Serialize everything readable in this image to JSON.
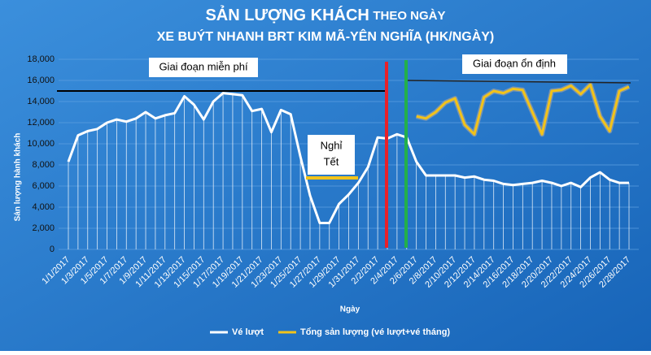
{
  "chart_data": {
    "type": "line",
    "title": "SẢN LƯỢNG KHÁCH",
    "title_suffix": "THEO NGÀY",
    "subtitle": "XE BUÝT NHANH BRT KIM MÃ-YÊN NGHĨA (HK/NGÀY)",
    "y_label": "Sản lượng hành khách",
    "x_label": "Ngày",
    "annotations": [
      "Giai đoạn miễn phí",
      "Nghỉ",
      "Tết",
      "Giai đoạn ổn định"
    ],
    "categories": [
      "1/1/2017",
      null,
      "1/3/2017",
      null,
      "1/5/2017",
      null,
      "1/7/2017",
      null,
      "1/9/2017",
      null,
      "1/11/2017",
      null,
      "1/13/2017",
      null,
      "1/15/2017",
      null,
      "1/17/2017",
      null,
      "1/19/2017",
      null,
      "1/21/2017",
      null,
      "1/23/2017",
      null,
      "1/25/2017",
      null,
      "1/27/2017",
      null,
      "1/29/2017",
      null,
      "1/31/2017",
      null,
      "2/2/2017",
      null,
      "2/4/2017",
      null,
      "2/6/2017",
      null,
      "2/8/2017",
      null,
      "2/10/2017",
      null,
      "2/12/2017",
      null,
      "2/14/2017",
      null,
      "2/16/2017",
      null,
      "2/18/2017",
      null,
      "2/20/2017",
      null,
      "2/22/2017",
      null,
      "2/24/2017",
      null,
      "2/26/2017",
      null,
      "2/28/2017"
    ],
    "series": [
      {
        "name": "Vé lượt",
        "color": "#ffffff",
        "values": [
          8300,
          10800,
          11200,
          11400,
          12000,
          12300,
          12100,
          12400,
          13000,
          12400,
          12700,
          12900,
          14500,
          13700,
          12300,
          14000,
          14800,
          14700,
          14600,
          13100,
          13300,
          11100,
          13200,
          12800,
          8800,
          5100,
          2500,
          2500,
          4300,
          5200,
          6300,
          7800,
          10600,
          10500,
          10900,
          10600,
          8300,
          7000,
          7000,
          7000,
          7000,
          6800,
          6900,
          6600,
          6500,
          6200,
          6100,
          6200,
          6300,
          6500,
          6300,
          6000,
          6300,
          5900,
          6800,
          7300,
          6600,
          6300,
          6300
        ]
      },
      {
        "name": "Tổng sản lượng (vé lượt+vé tháng)",
        "color": "#f2c31a",
        "values": [
          null,
          null,
          null,
          null,
          null,
          null,
          null,
          null,
          null,
          null,
          null,
          null,
          null,
          null,
          null,
          null,
          null,
          null,
          null,
          null,
          null,
          null,
          null,
          null,
          null,
          null,
          null,
          null,
          null,
          null,
          null,
          null,
          null,
          null,
          null,
          null,
          12600,
          12400,
          13000,
          13900,
          14300,
          11800,
          10900,
          14400,
          15000,
          14800,
          15200,
          15100,
          13000,
          10900,
          15000,
          15100,
          15500,
          14700,
          15600,
          12600,
          11200,
          15000,
          15400
        ]
      }
    ],
    "ylim": [
      0,
      18000
    ],
    "yticks": [
      0,
      {
        "value": 2000,
        "label": "2,000"
      },
      {
        "value": 4000,
        "label": "4,000"
      },
      {
        "value": 6000,
        "label": "6,000"
      },
      {
        "value": 8000,
        "label": "8,000"
      },
      {
        "value": 10000,
        "label": "10,000"
      },
      {
        "value": 12000,
        "label": "12,000"
      },
      {
        "value": 14000,
        "label": "14,000"
      },
      {
        "value": 16000,
        "label": "16,000"
      },
      {
        "value": 18000,
        "label": "18,000"
      }
    ],
    "grid": true
  }
}
